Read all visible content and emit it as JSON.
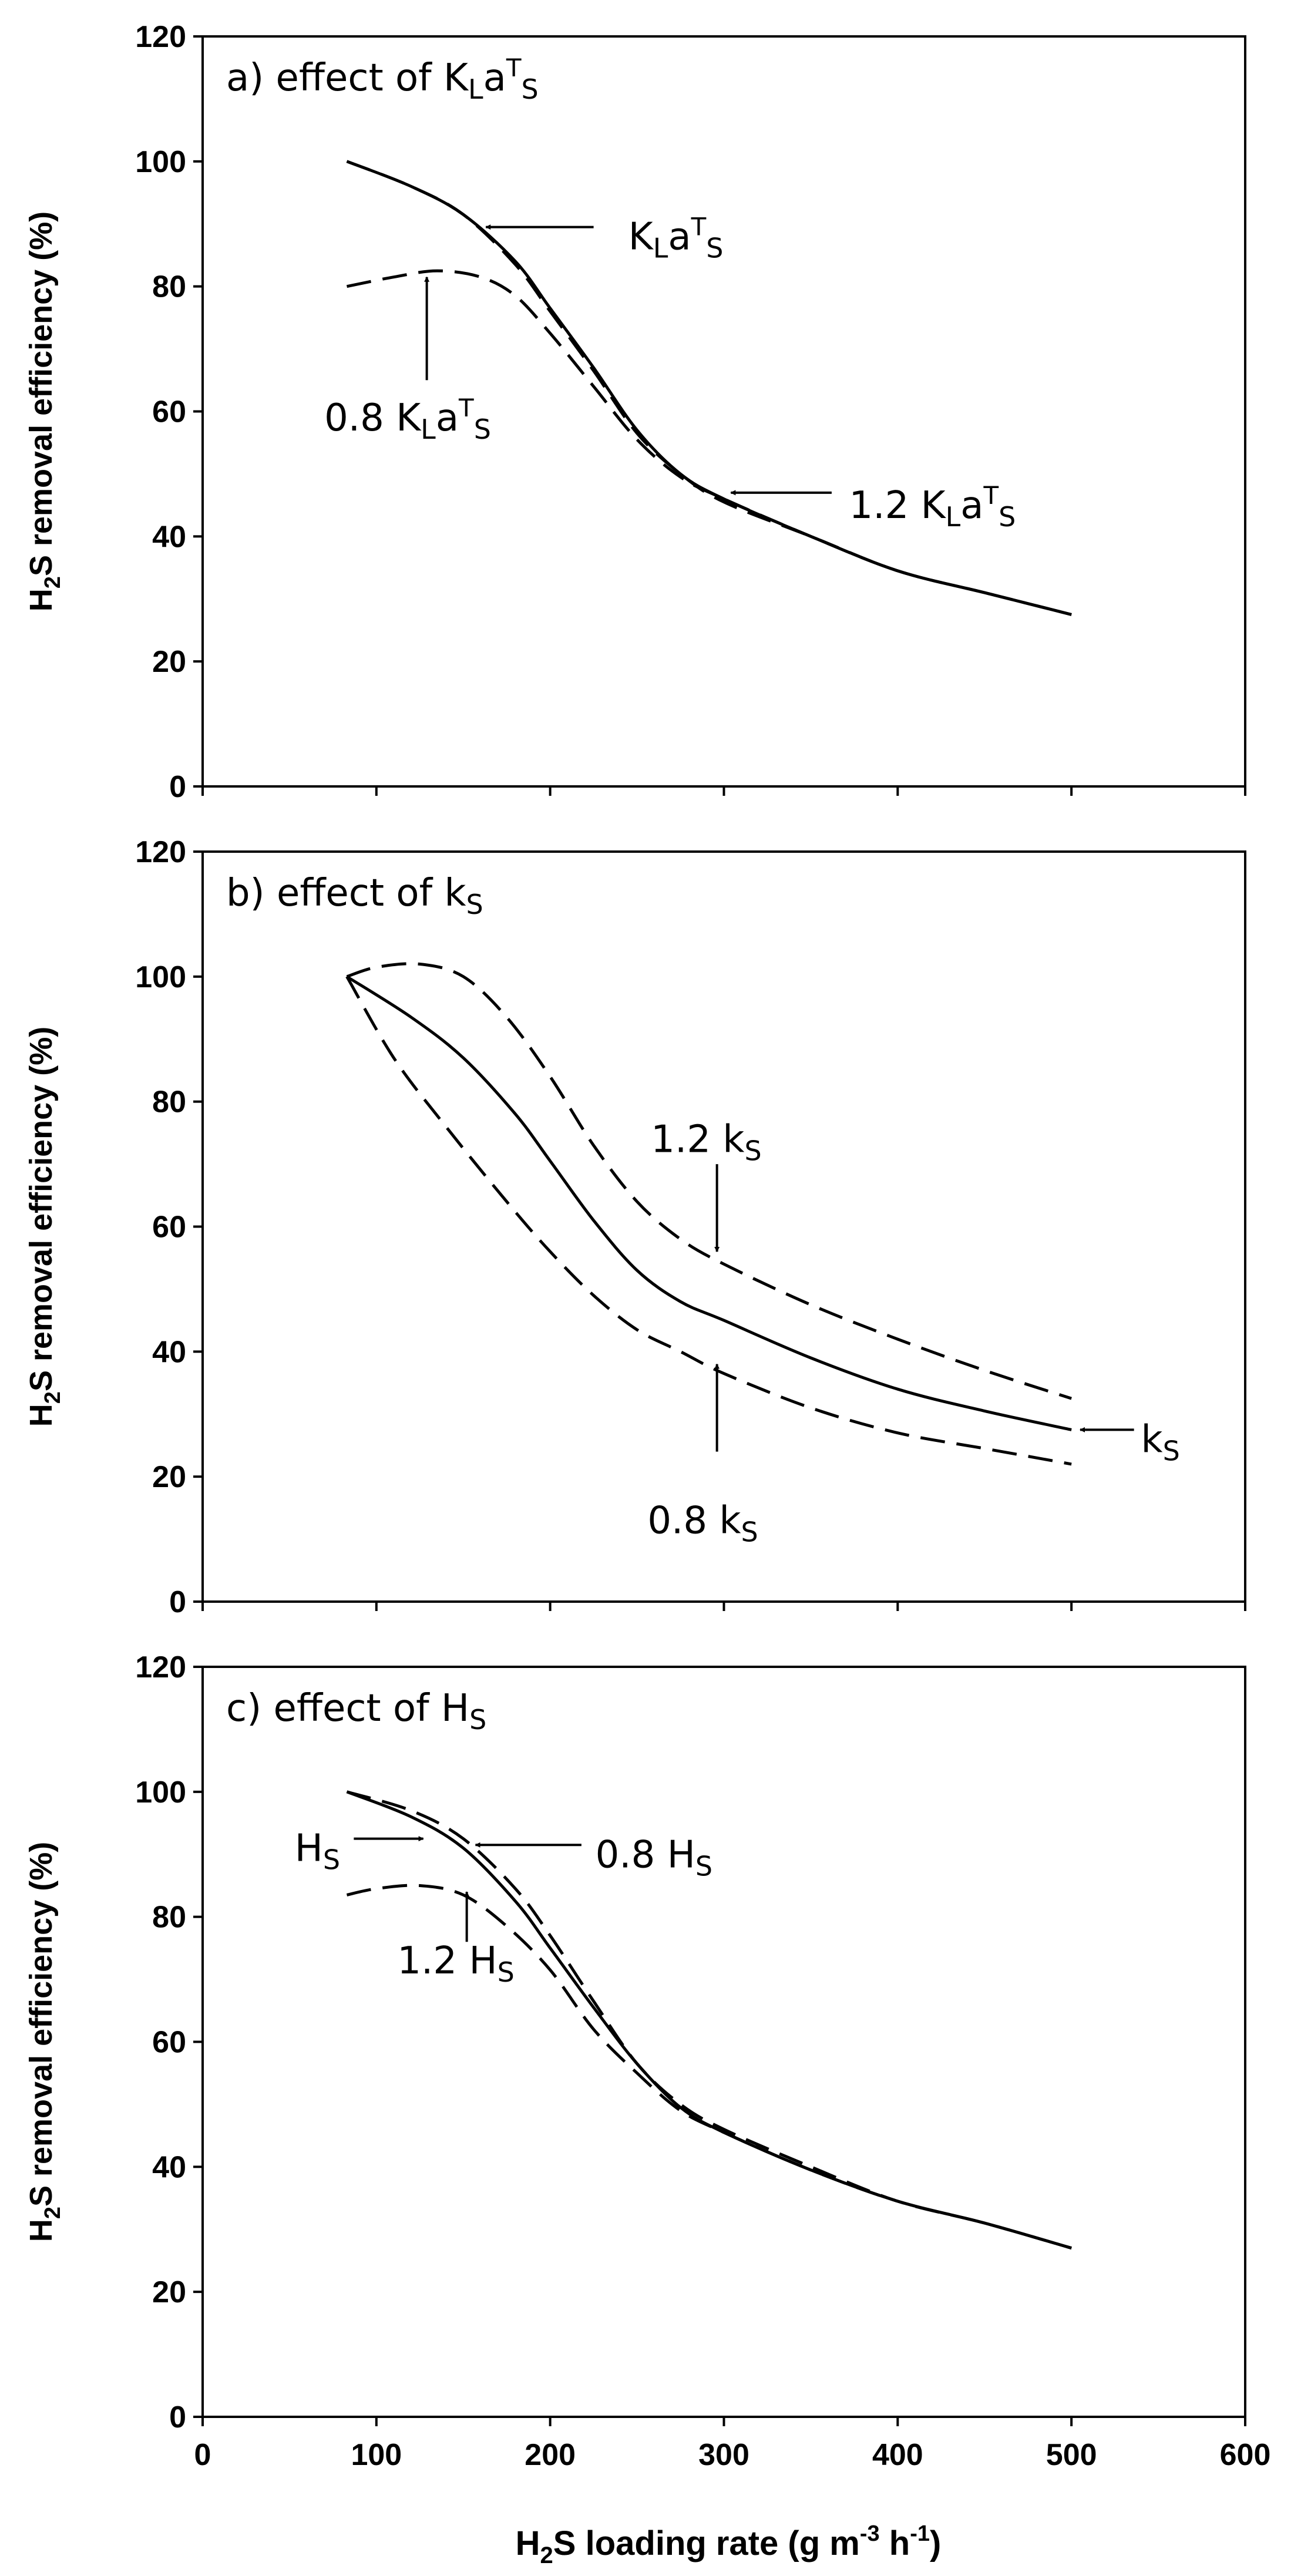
{
  "chart_data": [
    {
      "type": "line",
      "panel": "a",
      "title_parts": [
        {
          "t": "a)  effect  of  K"
        },
        {
          "t": "L",
          "style": "sub"
        },
        {
          "t": "a"
        },
        {
          "t": "T",
          "style": "sup"
        },
        {
          "t": "S",
          "style": "sub"
        }
      ],
      "ylabel": "H2S removal efficiency (%)",
      "xlim": [
        0,
        600
      ],
      "ylim": [
        0,
        120
      ],
      "xticks": [
        0,
        100,
        200,
        300,
        400,
        500,
        600
      ],
      "yticks": [
        0,
        20,
        40,
        60,
        80,
        100,
        120
      ],
      "series": [
        {
          "name": "KLaTS",
          "style": "solid",
          "x": [
            83,
            120,
            150,
            180,
            200,
            225,
            250,
            275,
            300,
            350,
            400,
            450,
            500
          ],
          "y": [
            100,
            96,
            91.5,
            84,
            76.5,
            67,
            57,
            50,
            46,
            40,
            34.5,
            31,
            27.5
          ]
        },
        {
          "name": "0.8 KLaTS",
          "style": "dashed",
          "x": [
            83,
            110,
            135,
            160,
            180,
            200,
            225,
            250,
            275,
            300,
            350,
            400,
            450,
            500
          ],
          "y": [
            80,
            81.5,
            82.5,
            81.5,
            78.5,
            72.5,
            64,
            55.5,
            49.5,
            46,
            40,
            34.5,
            31,
            27.5
          ]
        },
        {
          "name": "1.2 KLaTS",
          "style": "dashed",
          "x": [
            83,
            120,
            150,
            180,
            200,
            225,
            250,
            275,
            300,
            350,
            400,
            450,
            500
          ],
          "y": [
            100,
            96,
            91.5,
            83.5,
            76,
            66.5,
            56.5,
            50,
            45.5,
            40,
            34.5,
            31,
            27.5
          ]
        }
      ],
      "annotations": [
        {
          "parts": [
            {
              "t": "K"
            },
            {
              "t": "L",
              "style": "sub"
            },
            {
              "t": "a"
            },
            {
              "t": "T",
              "style": "sup"
            },
            {
              "t": "S",
              "style": "sub"
            }
          ],
          "text_at": [
            245,
            88
          ],
          "arrow_from": [
            225,
            89.5
          ],
          "arrow_to": [
            163,
            89.5
          ]
        },
        {
          "parts": [
            {
              "t": "0.8  K"
            },
            {
              "t": "L",
              "style": "sub"
            },
            {
              "t": "a"
            },
            {
              "t": "T",
              "style": "sup"
            },
            {
              "t": "S",
              "style": "sub"
            }
          ],
          "text_at": [
            70,
            59
          ],
          "arrow_from": [
            129,
            65
          ],
          "arrow_to": [
            129,
            81.5
          ]
        },
        {
          "parts": [
            {
              "t": "1.2  K"
            },
            {
              "t": "L",
              "style": "sub"
            },
            {
              "t": "a"
            },
            {
              "t": "T",
              "style": "sup"
            },
            {
              "t": "S",
              "style": "sub"
            }
          ],
          "text_at": [
            372,
            45
          ],
          "arrow_from": [
            362,
            47
          ],
          "arrow_to": [
            304,
            47
          ]
        }
      ]
    },
    {
      "type": "line",
      "panel": "b",
      "title_parts": [
        {
          "t": "b)  effect  of  k"
        },
        {
          "t": "S",
          "style": "sub"
        }
      ],
      "ylabel": "H2S removal efficiency (%)",
      "xlim": [
        0,
        600
      ],
      "ylim": [
        0,
        120
      ],
      "xticks": [
        0,
        100,
        200,
        300,
        400,
        500,
        600
      ],
      "yticks": [
        0,
        20,
        40,
        60,
        80,
        100,
        120
      ],
      "series": [
        {
          "name": "kS",
          "style": "solid",
          "x": [
            83,
            120,
            150,
            180,
            200,
            225,
            250,
            275,
            300,
            350,
            400,
            450,
            500
          ],
          "y": [
            100,
            93.5,
            87,
            78,
            70.5,
            61,
            53,
            48,
            45,
            39,
            34,
            30.5,
            27.5
          ]
        },
        {
          "name": "1.2 kS",
          "style": "dashed",
          "x": [
            83,
            100,
            125,
            150,
            175,
            200,
            225,
            250,
            275,
            300,
            350,
            400,
            450,
            500
          ],
          "y": [
            100,
            101.5,
            102,
            100,
            93.5,
            84,
            73,
            64,
            58,
            54,
            47.5,
            42,
            37,
            32.5
          ]
        },
        {
          "name": "0.8 kS",
          "style": "dashed",
          "x": [
            83,
            110,
            140,
            175,
            200,
            225,
            250,
            275,
            300,
            350,
            400,
            450,
            500
          ],
          "y": [
            100,
            87,
            76,
            64,
            56,
            49,
            43.5,
            40,
            36.5,
            31,
            27,
            24.5,
            22
          ]
        }
      ],
      "annotations": [
        {
          "parts": [
            {
              "t": "1.2  k"
            },
            {
              "t": "S",
              "style": "sub"
            }
          ],
          "text_at": [
            258,
            74
          ],
          "arrow_from": [
            296,
            70
          ],
          "arrow_to": [
            296,
            56
          ]
        },
        {
          "parts": [
            {
              "t": "0.8  k"
            },
            {
              "t": "S",
              "style": "sub"
            }
          ],
          "text_at": [
            256,
            13
          ],
          "arrow_from": [
            296,
            24
          ],
          "arrow_to": [
            296,
            38
          ]
        },
        {
          "parts": [
            {
              "t": "k"
            },
            {
              "t": "S",
              "style": "sub"
            }
          ],
          "text_at": [
            540,
            26
          ],
          "arrow_from": [
            536,
            27.5
          ],
          "arrow_to": [
            505,
            27.5
          ]
        }
      ]
    },
    {
      "type": "line",
      "panel": "c",
      "title_parts": [
        {
          "t": "c)  effect  of  H"
        },
        {
          "t": "S",
          "style": "sub"
        }
      ],
      "ylabel": "H2S removal efficiency (%)",
      "xlabel": "H2S loading rate (g m-3 h-1)",
      "xlim": [
        0,
        600
      ],
      "ylim": [
        0,
        120
      ],
      "xticks": [
        0,
        100,
        200,
        300,
        400,
        500,
        600
      ],
      "yticks": [
        0,
        20,
        40,
        60,
        80,
        100,
        120
      ],
      "series": [
        {
          "name": "HS",
          "style": "solid",
          "x": [
            83,
            120,
            150,
            180,
            200,
            225,
            250,
            275,
            300,
            350,
            400,
            450,
            500
          ],
          "y": [
            100,
            96,
            91,
            82.5,
            75,
            65.5,
            56.5,
            49.5,
            45.5,
            39.5,
            34.5,
            31,
            27
          ]
        },
        {
          "name": "0.8 HS",
          "style": "dashed",
          "x": [
            83,
            120,
            150,
            180,
            200,
            225,
            250,
            275,
            300,
            350,
            400,
            450,
            500
          ],
          "y": [
            100,
            97,
            92.5,
            84.5,
            77,
            66.5,
            56.5,
            50,
            46,
            40,
            34.5,
            31,
            27
          ]
        },
        {
          "name": "1.2 HS",
          "style": "dashed",
          "x": [
            83,
            100,
            125,
            150,
            175,
            200,
            225,
            250,
            275,
            300,
            350,
            400,
            450,
            500
          ],
          "y": [
            83.5,
            84.5,
            85,
            83.5,
            78.5,
            71.5,
            62,
            55,
            49,
            45.5,
            39.5,
            34.5,
            31,
            27
          ]
        }
      ],
      "annotations": [
        {
          "parts": [
            {
              "t": "H"
            },
            {
              "t": "S",
              "style": "sub"
            }
          ],
          "text_at": [
            53,
            91
          ],
          "arrow_from": [
            87,
            92.5
          ],
          "arrow_to": [
            127,
            92.5
          ]
        },
        {
          "parts": [
            {
              "t": "0.8  H"
            },
            {
              "t": "S",
              "style": "sub"
            }
          ],
          "text_at": [
            226,
            90
          ],
          "arrow_from": [
            218,
            91.5
          ],
          "arrow_to": [
            157,
            91.5
          ]
        },
        {
          "parts": [
            {
              "t": "1.2  H"
            },
            {
              "t": "S",
              "style": "sub"
            }
          ],
          "text_at": [
            112,
            73
          ],
          "arrow_from": [
            152,
            76
          ],
          "arrow_to": [
            152,
            84
          ]
        }
      ]
    }
  ],
  "axis_text": {
    "ylabel": {
      "a": "H",
      "sub": "2",
      "b": "S removal efficiency (%)"
    },
    "xlabel": {
      "a": "H",
      "sub": "2",
      "b": "S loading rate (g m",
      "sup1": "-3",
      "c": " h",
      "sup2": "-1",
      "d": ")"
    }
  }
}
